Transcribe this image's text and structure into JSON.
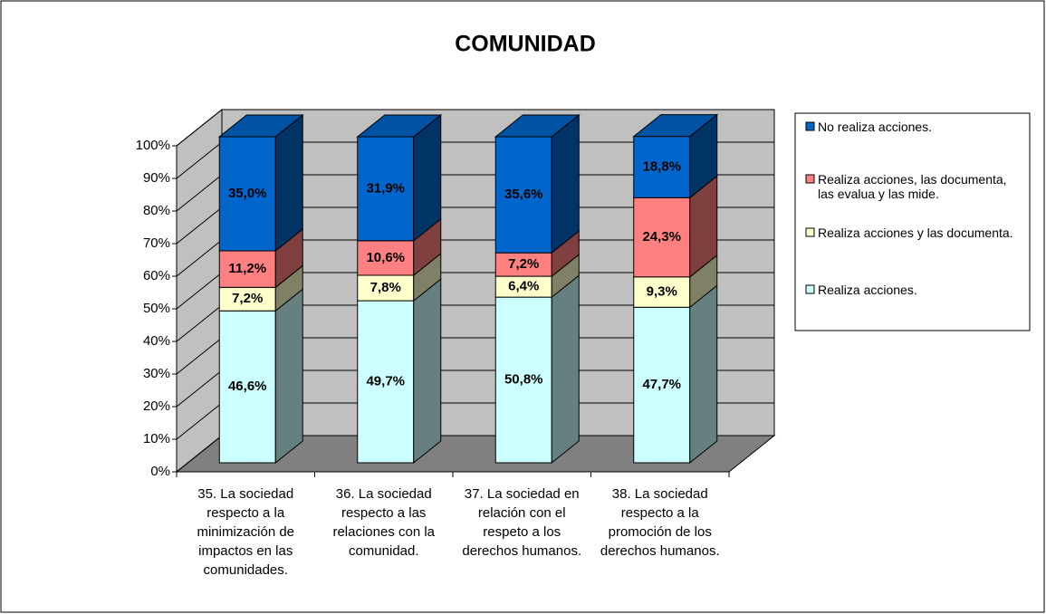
{
  "chart_data": {
    "type": "bar3d_stacked",
    "title": "COMUNIDAD",
    "categories": [
      "35. La sociedad respecto a la minimización de impactos en las comunidades.",
      "36. La sociedad respecto a las relaciones con la comunidad.",
      "37. La sociedad en relación con el respeto a los derechos humanos.",
      "38. La sociedad respecto a la promoción de los derechos humanos."
    ],
    "series": [
      {
        "name": "Realiza acciones.",
        "color": "#ccffff",
        "values": [
          46.6,
          49.7,
          50.8,
          47.7
        ],
        "value_labels": [
          "46,6%",
          "49,7%",
          "50,8%",
          "47,7%"
        ]
      },
      {
        "name": "Realiza acciones y las documenta.",
        "color": "#ffffcc",
        "values": [
          7.2,
          7.8,
          6.4,
          9.3
        ],
        "value_labels": [
          "7,2%",
          "7,8%",
          "6,4%",
          "9,3%"
        ]
      },
      {
        "name": "Realiza acciones, las documenta, las evalua y las mide.",
        "color": "#ff8080",
        "values": [
          11.2,
          10.6,
          7.2,
          24.3
        ],
        "value_labels": [
          "11,2%",
          "10,6%",
          "7,2%",
          "24,3%"
        ]
      },
      {
        "name": "No realiza acciones.",
        "color": "#0066cc",
        "values": [
          35.0,
          31.9,
          35.6,
          18.8
        ],
        "value_labels": [
          "35,0%",
          "31,9%",
          "35,6%",
          "18,8%"
        ]
      }
    ],
    "ylim": [
      0,
      100
    ],
    "yticks": [
      {
        "value": 0,
        "label": "0%"
      },
      {
        "value": 10,
        "label": "10%"
      },
      {
        "value": 20,
        "label": "20%"
      },
      {
        "value": 30,
        "label": "30%"
      },
      {
        "value": 40,
        "label": "40%"
      },
      {
        "value": 50,
        "label": "50%"
      },
      {
        "value": 60,
        "label": "60%"
      },
      {
        "value": 70,
        "label": "70%"
      },
      {
        "value": 80,
        "label": "80%"
      },
      {
        "value": 90,
        "label": "90%"
      },
      {
        "value": 100,
        "label": "100%"
      }
    ],
    "grid": true,
    "legend": "right"
  }
}
